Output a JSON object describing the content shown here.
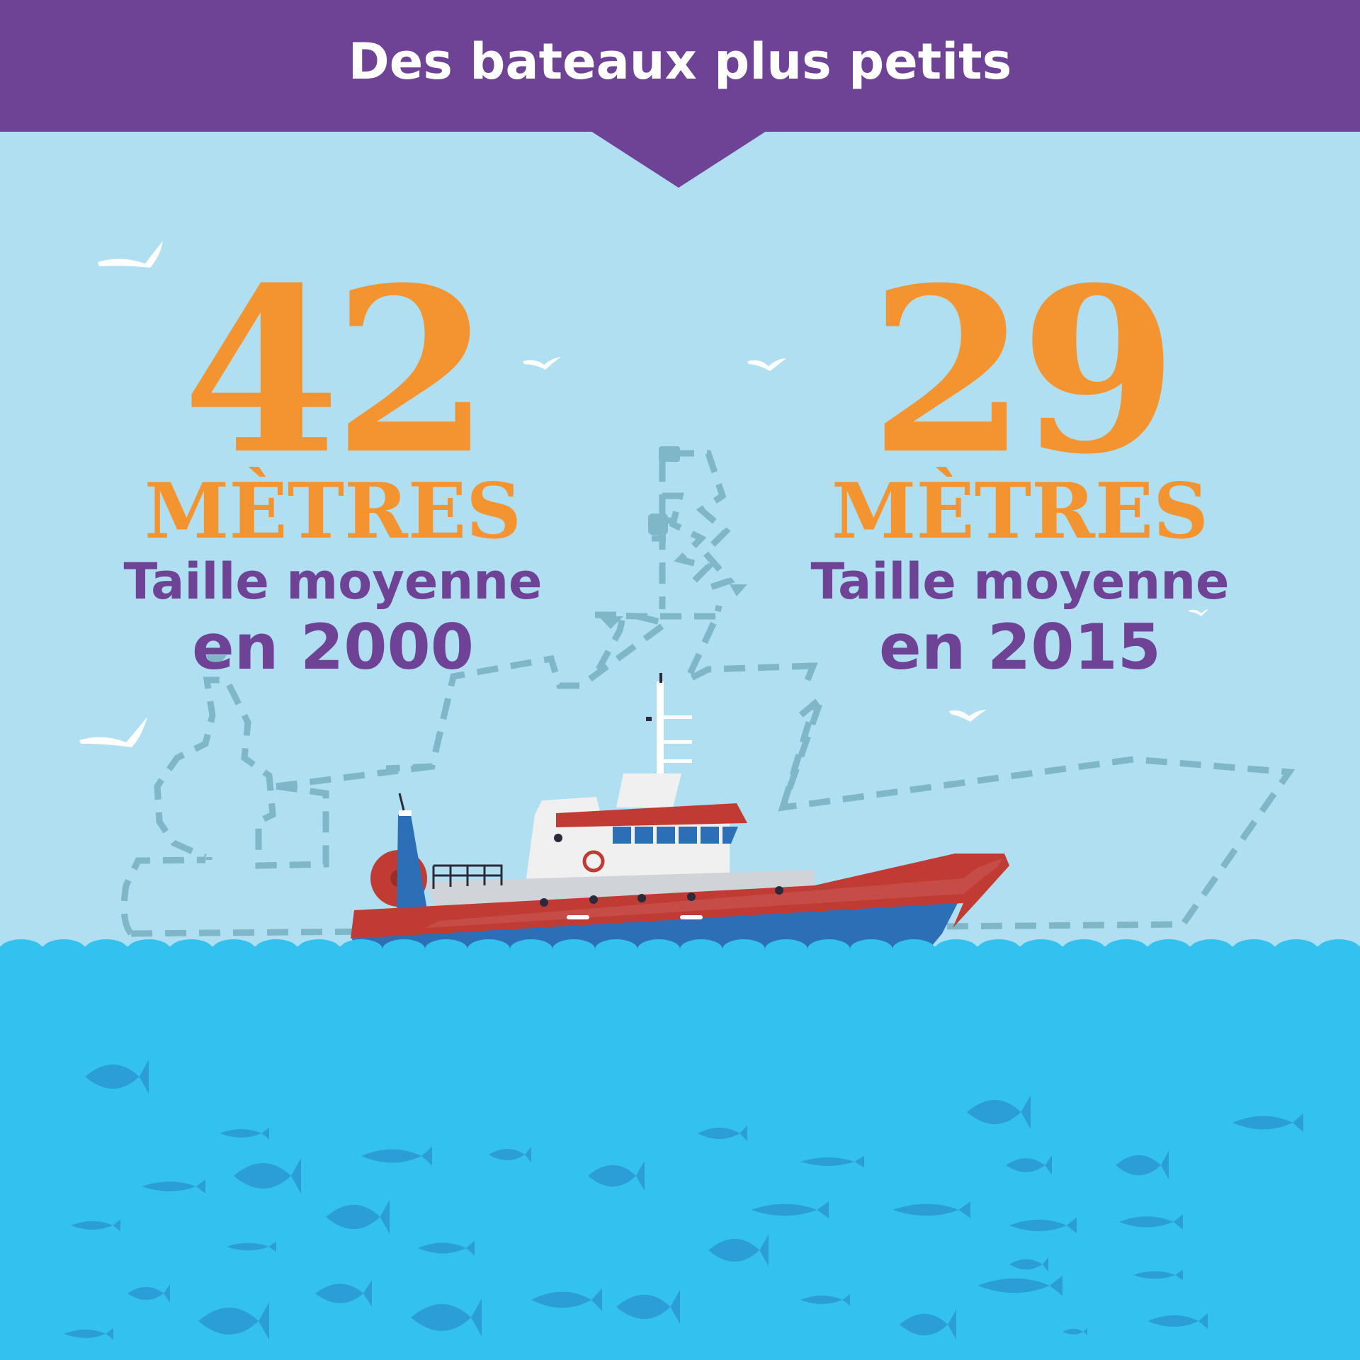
{
  "title": "Des bateaux plus petits",
  "left_stat": {
    "value": "42",
    "unit": "MÈTRES",
    "label": "Taille moyenne",
    "year_text": "en 2000"
  },
  "right_stat": {
    "value": "29",
    "unit": "MÈTRES",
    "label": "Taille moyenne",
    "year_text": "en 2015"
  },
  "colors": {
    "banner": "#6e4395",
    "sky": "#afdff0",
    "sea": "#33c2ef",
    "accent_orange": "#f39431",
    "text_purple": "#6e4395",
    "hull_red": "#c03b34",
    "hull_blue": "#2c6fb6",
    "fish": "#2b9ed8",
    "dashed_outline": "#7fb7c9"
  },
  "icons": [
    "seagull-icon",
    "fish-icon",
    "trawler-boat-icon"
  ]
}
